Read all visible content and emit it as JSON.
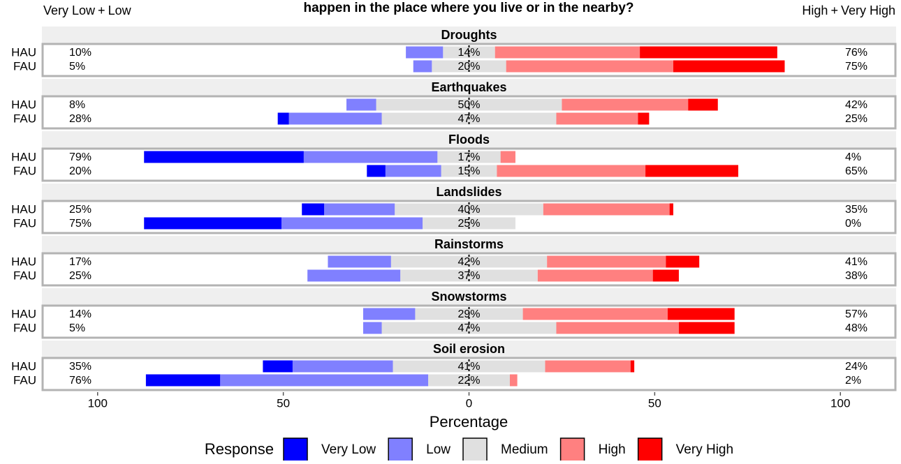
{
  "chart_data": {
    "type": "diverging_bar",
    "title": "happen in the place where you live or in the nearby?",
    "xlabel": "Percentage",
    "legend_title": "Response",
    "joiner": "+",
    "categories": [
      "Droughts",
      "Earthquakes",
      "Floods",
      "Landslides",
      "Rainstorms",
      "Snowstorms",
      "Soil erosion"
    ],
    "groups": [
      "HAU",
      "FAU"
    ],
    "series": [
      {
        "name": "Very Low",
        "color": "#0000ff",
        "side": "left",
        "values": [
          [
            0,
            0
          ],
          [
            0,
            3
          ],
          [
            43,
            5
          ],
          [
            6,
            37
          ],
          [
            0,
            0
          ],
          [
            0,
            0
          ],
          [
            8,
            20
          ]
        ]
      },
      {
        "name": "Low",
        "color": "#8080ff",
        "side": "left",
        "values": [
          [
            10,
            5
          ],
          [
            8,
            25
          ],
          [
            36,
            15
          ],
          [
            19,
            38
          ],
          [
            17,
            25
          ],
          [
            14,
            5
          ],
          [
            27,
            56
          ]
        ]
      },
      {
        "name": "Medium",
        "color": "#e0e0e0",
        "side": "center",
        "values": [
          [
            14,
            20
          ],
          [
            50,
            47
          ],
          [
            17,
            15
          ],
          [
            40,
            25
          ],
          [
            42,
            37
          ],
          [
            29,
            47
          ],
          [
            41,
            22
          ]
        ]
      },
      {
        "name": "High",
        "color": "#ff8080",
        "side": "right",
        "values": [
          [
            39,
            45
          ],
          [
            34,
            22
          ],
          [
            4,
            40
          ],
          [
            34,
            0
          ],
          [
            32,
            31
          ],
          [
            39,
            33
          ],
          [
            23,
            2
          ]
        ]
      },
      {
        "name": "Very High",
        "color": "#ff0000",
        "side": "right",
        "values": [
          [
            37,
            30
          ],
          [
            8,
            3
          ],
          [
            0,
            25
          ],
          [
            1,
            0
          ],
          [
            9,
            7
          ],
          [
            18,
            15
          ],
          [
            1,
            0
          ]
        ]
      }
    ],
    "left_labels": [
      [
        "10%",
        "5%"
      ],
      [
        "8%",
        "28%"
      ],
      [
        "79%",
        "20%"
      ],
      [
        "25%",
        "75%"
      ],
      [
        "17%",
        "25%"
      ],
      [
        "14%",
        "5%"
      ],
      [
        "35%",
        "76%"
      ]
    ],
    "center_labels": [
      [
        "14%",
        "20%"
      ],
      [
        "50%",
        "47%"
      ],
      [
        "17%",
        "15%"
      ],
      [
        "40%",
        "25%"
      ],
      [
        "42%",
        "37%"
      ],
      [
        "29%",
        "47%"
      ],
      [
        "41%",
        "22%"
      ]
    ],
    "right_labels": [
      [
        "76%",
        "75%"
      ],
      [
        "42%",
        "25%"
      ],
      [
        "4%",
        "65%"
      ],
      [
        "35%",
        "0%"
      ],
      [
        "41%",
        "38%"
      ],
      [
        "57%",
        "48%"
      ],
      [
        "24%",
        "2%"
      ]
    ],
    "xlim": [
      -115,
      115
    ],
    "xticks": [
      {
        "value": -100,
        "label": "100"
      },
      {
        "value": -50,
        "label": "50"
      },
      0,
      50,
      100
    ]
  }
}
